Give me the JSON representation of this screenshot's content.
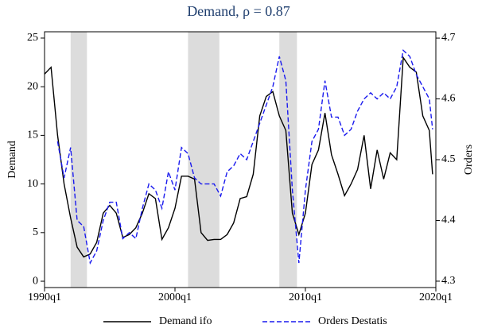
{
  "chart_data": {
    "type": "line",
    "title": "Demand, ρ = 0.87",
    "ylabel": "Demand",
    "y2label": "Orders",
    "x": [
      1990,
      1990.5,
      1991,
      1991.5,
      1992,
      1992.5,
      1993,
      1993.5,
      1994,
      1994.5,
      1995,
      1995.5,
      1996,
      1996.5,
      1997,
      1997.5,
      1998,
      1998.5,
      1999,
      1999.5,
      2000,
      2000.5,
      2001,
      2001.5,
      2002,
      2002.5,
      2003,
      2003.5,
      2004,
      2004.5,
      2005,
      2005.5,
      2006,
      2006.5,
      2007,
      2007.5,
      2008,
      2008.5,
      2009,
      2009.5,
      2010,
      2010.5,
      2011,
      2011.5,
      2012,
      2012.5,
      2013,
      2013.5,
      2014,
      2014.5,
      2015,
      2015.5,
      2016,
      2016.5,
      2017,
      2017.5,
      2018,
      2018.5,
      2019,
      2019.5,
      2019.75
    ],
    "series": [
      {
        "name": "Demand ifo",
        "color": "#000000",
        "dash": false,
        "axis": "y",
        "values": [
          21.3,
          22,
          15,
          10,
          6.5,
          3.5,
          2.5,
          2.8,
          4,
          7,
          7.8,
          7,
          4.5,
          4.8,
          5.5,
          7,
          9,
          8.5,
          4.3,
          5.5,
          7.5,
          10.8,
          10.8,
          10.5,
          5,
          4.2,
          4.3,
          4.3,
          4.8,
          6,
          8.5,
          8.7,
          11,
          17,
          19,
          19.5,
          17,
          15.5,
          7,
          4.8,
          7,
          12,
          13.5,
          17.3,
          13,
          11,
          8.8,
          10,
          11.5,
          15,
          9.5,
          13.5,
          10.5,
          13.2,
          12.5,
          23,
          22,
          21.5,
          17,
          15.5,
          11
        ]
      },
      {
        "name": "Orders Destatis",
        "color": "#1a1aee",
        "dash": true,
        "axis": "y2",
        "values": [
          null,
          null,
          4.53,
          4.47,
          4.52,
          4.4,
          4.39,
          4.33,
          4.35,
          4.4,
          4.43,
          4.43,
          4.37,
          4.38,
          4.37,
          4.42,
          4.46,
          4.45,
          4.42,
          4.48,
          4.45,
          4.52,
          4.51,
          4.47,
          4.46,
          4.46,
          4.46,
          4.44,
          4.48,
          4.49,
          4.51,
          4.5,
          4.53,
          4.56,
          4.59,
          4.62,
          4.67,
          4.63,
          4.45,
          4.33,
          4.45,
          4.53,
          4.55,
          4.63,
          4.57,
          4.57,
          4.54,
          4.55,
          4.58,
          4.6,
          4.61,
          4.6,
          4.61,
          4.6,
          4.62,
          4.68,
          4.67,
          4.64,
          4.62,
          4.6,
          4.55
        ]
      }
    ],
    "shaded_periods": [
      [
        1992,
        1993.25
      ],
      [
        2001,
        2003.4
      ],
      [
        2008,
        2009.35
      ]
    ],
    "shade_color": "#dcdcdc",
    "xlim": [
      1990,
      2020
    ],
    "xticks": [
      {
        "value": 1990,
        "label": "1990q1"
      },
      {
        "value": 2000,
        "label": "2000q1"
      },
      {
        "value": 2010,
        "label": "2010q1"
      },
      {
        "value": 2020,
        "label": "2020q1"
      }
    ],
    "ylim": [
      -0.65,
      25.65
    ],
    "yticks": [
      0,
      5,
      10,
      15,
      20,
      25
    ],
    "y2lim": [
      4.2895,
      4.7105
    ],
    "y2ticks": [
      4.3,
      4.4,
      4.5,
      4.6,
      4.7
    ],
    "legend": "bottom"
  }
}
